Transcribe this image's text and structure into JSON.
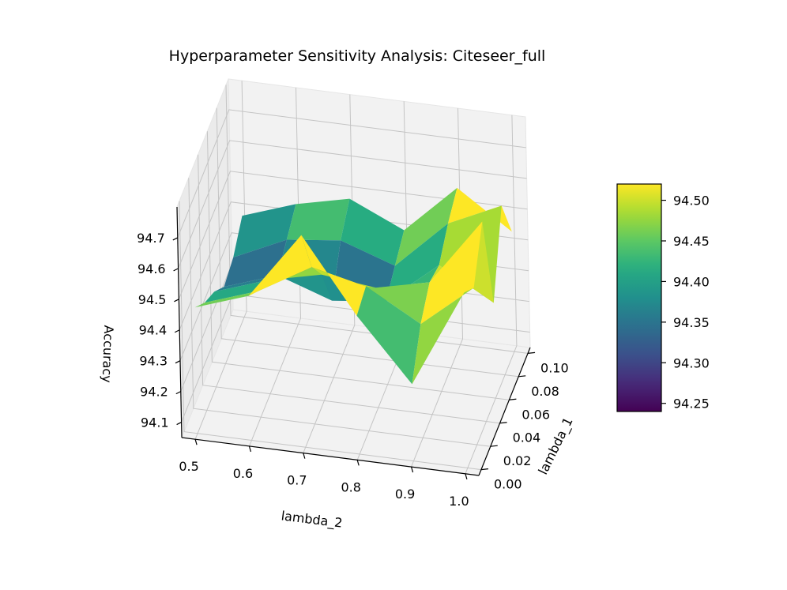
{
  "chart_data": {
    "type": "surface",
    "title": "Hyperparameter Sensitivity Analysis: Citeseer_full",
    "xlabel": "lambda_1",
    "ylabel": "lambda_2",
    "zlabel": "Accuracy",
    "x": [
      0.0,
      0.02,
      0.04,
      0.06,
      0.08,
      0.1
    ],
    "y": [
      0.5,
      0.6,
      0.7,
      0.8,
      0.9,
      1.0
    ],
    "x_ticks": [
      "0.00",
      "0.02",
      "0.04",
      "0.06",
      "0.08",
      "0.10"
    ],
    "y_ticks": [
      "0.5",
      "0.6",
      "0.7",
      "0.8",
      "0.9",
      "1.0"
    ],
    "z_ticks": [
      "94.1",
      "94.2",
      "94.3",
      "94.4",
      "94.5",
      "94.6",
      "94.7"
    ],
    "zlim": [
      94.1,
      94.75
    ],
    "z": [
      [
        94.46,
        94.4,
        94.36,
        94.3,
        94.32,
        94.38
      ],
      [
        94.52,
        94.46,
        94.42,
        94.36,
        94.4,
        94.44
      ],
      [
        94.74,
        94.56,
        94.46,
        94.3,
        94.42,
        94.48
      ],
      [
        94.5,
        94.52,
        94.44,
        94.32,
        94.36,
        94.4
      ],
      [
        94.3,
        94.42,
        94.48,
        94.46,
        94.52,
        94.56
      ],
      [
        94.62,
        94.56,
        94.7,
        94.36,
        94.6,
        94.44
      ]
    ],
    "colorbar": {
      "colormap": "viridis",
      "range": [
        94.24,
        94.52
      ],
      "ticks": [
        "94.25",
        "94.30",
        "94.35",
        "94.40",
        "94.45",
        "94.50"
      ]
    },
    "grid": true,
    "legend": "none"
  }
}
